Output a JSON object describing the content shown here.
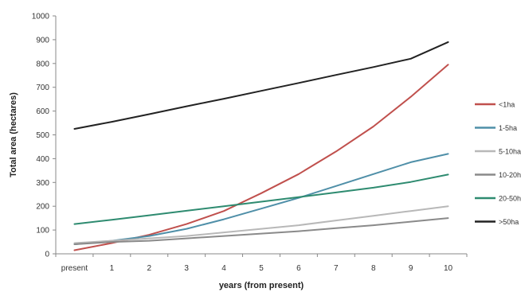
{
  "chart_data": {
    "type": "line",
    "title": "",
    "xlabel": "years (from present)",
    "ylabel": "Total area (hectares)",
    "categories": [
      "present",
      "1",
      "2",
      "3",
      "4",
      "5",
      "6",
      "7",
      "8",
      "9",
      "10"
    ],
    "ylim": [
      0,
      1000
    ],
    "yticks": [
      0,
      100,
      200,
      300,
      400,
      500,
      600,
      700,
      800,
      900,
      1000
    ],
    "grid": false,
    "legend_position": "right",
    "series": [
      {
        "name": "<1ha",
        "color": "#c0504d",
        "values": [
          15,
          45,
          80,
          125,
          180,
          255,
          335,
          430,
          535,
          660,
          795
        ]
      },
      {
        "name": "1-5ha",
        "color": "#4f8fa8",
        "values": [
          40,
          55,
          75,
          105,
          145,
          190,
          235,
          285,
          335,
          385,
          420
        ]
      },
      {
        "name": "5-10ha",
        "color": "#b8b8b8",
        "values": [
          45,
          55,
          65,
          75,
          90,
          105,
          120,
          140,
          160,
          180,
          200
        ]
      },
      {
        "name": "10-20ha",
        "color": "#8a8a8a",
        "values": [
          40,
          50,
          55,
          65,
          75,
          85,
          95,
          108,
          120,
          135,
          150
        ]
      },
      {
        "name": "20-50ha",
        "color": "#2e8b70",
        "values": [
          125,
          143,
          162,
          181,
          200,
          219,
          238,
          258,
          278,
          302,
          333
        ]
      },
      {
        "name": ">50ha",
        "color": "#222222",
        "values": [
          525,
          555,
          587,
          620,
          652,
          685,
          718,
          752,
          785,
          820,
          890
        ]
      }
    ]
  }
}
